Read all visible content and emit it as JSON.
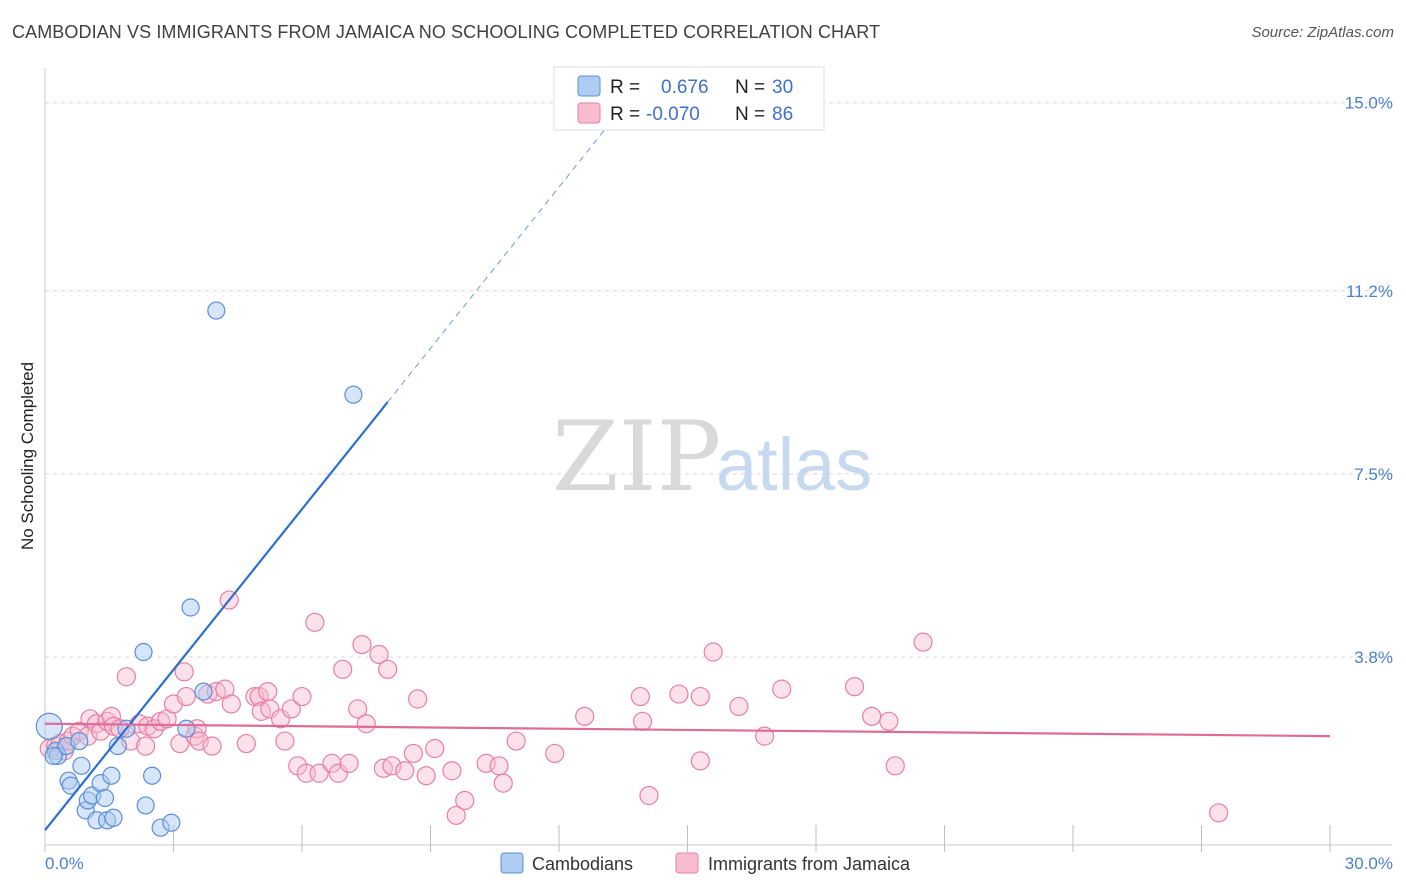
{
  "title": "CAMBODIAN VS IMMIGRANTS FROM JAMAICA NO SCHOOLING COMPLETED CORRELATION CHART",
  "source": "Source: ZipAtlas.com",
  "watermark": {
    "part1": "ZIP",
    "part2": "atlas"
  },
  "colors": {
    "blue_fill": "#aecbf2",
    "blue_stroke": "#5b8fd9",
    "blue_line": "#2a6fd1",
    "pink_fill": "#f7bcd0",
    "pink_stroke": "#e87fa3",
    "pink_line": "#e06b98",
    "grid": "#d8d8d8",
    "tick_label": "#4a7fd4"
  },
  "legend": {
    "r_label": "R =",
    "n_label": "N =",
    "rows": [
      {
        "r": "0.676",
        "n": "30"
      },
      {
        "r": "-0.070",
        "n": "86"
      }
    ]
  },
  "chart_data": {
    "type": "scatter",
    "title": "CAMBODIAN VS IMMIGRANTS FROM JAMAICA NO SCHOOLING COMPLETED CORRELATION CHART",
    "xlabel": "",
    "ylabel": "No Schooling Completed",
    "xlim": [
      0,
      30
    ],
    "ylim": [
      0,
      15.5
    ],
    "x_tick_labels": [
      "0.0%",
      "30.0%"
    ],
    "y_ticks": [
      3.8,
      7.5,
      11.2,
      15.0
    ],
    "y_tick_labels": [
      "3.8%",
      "7.5%",
      "11.2%",
      "15.0%"
    ],
    "grid": true,
    "series": [
      {
        "name": "Cambodians",
        "r": 0.676,
        "n": 30,
        "trend": {
          "x_start": 0.0,
          "y_start": 0.3,
          "x_solid_end": 8.0,
          "y_solid_end": 8.95,
          "x_dash_end": 13.2,
          "y_dash_end": 14.6
        },
        "points": [
          [
            0.1,
            2.4
          ],
          [
            0.25,
            1.9
          ],
          [
            0.3,
            1.8
          ],
          [
            0.5,
            2.0
          ],
          [
            0.55,
            1.3
          ],
          [
            0.6,
            1.2
          ],
          [
            0.8,
            2.1
          ],
          [
            0.85,
            1.6
          ],
          [
            0.95,
            0.7
          ],
          [
            1.0,
            0.9
          ],
          [
            1.1,
            1.0
          ],
          [
            1.2,
            0.5
          ],
          [
            1.3,
            1.25
          ],
          [
            1.45,
            0.5
          ],
          [
            1.55,
            1.4
          ],
          [
            1.6,
            0.55
          ],
          [
            1.7,
            2.0
          ],
          [
            1.9,
            2.35
          ],
          [
            2.3,
            3.9
          ],
          [
            2.35,
            0.8
          ],
          [
            2.5,
            1.4
          ],
          [
            2.7,
            0.35
          ],
          [
            2.95,
            0.45
          ],
          [
            3.3,
            2.35
          ],
          [
            3.4,
            4.8
          ],
          [
            3.7,
            3.1
          ],
          [
            4.0,
            10.8
          ],
          [
            7.2,
            9.1
          ],
          [
            0.2,
            1.8
          ],
          [
            1.4,
            0.95
          ]
        ]
      },
      {
        "name": "Immigrants from Jamaica",
        "r": -0.07,
        "n": 86,
        "trend": {
          "x_start": 0.0,
          "y_start": 2.45,
          "x_end": 30.0,
          "y_end": 2.2
        },
        "points": [
          [
            0.1,
            1.95
          ],
          [
            0.25,
            2.0
          ],
          [
            0.35,
            2.05
          ],
          [
            0.45,
            1.9
          ],
          [
            0.55,
            2.1
          ],
          [
            0.65,
            2.2
          ],
          [
            0.8,
            2.3
          ],
          [
            1.0,
            2.2
          ],
          [
            1.05,
            2.55
          ],
          [
            1.2,
            2.45
          ],
          [
            1.3,
            2.3
          ],
          [
            1.45,
            2.5
          ],
          [
            1.55,
            2.6
          ],
          [
            1.6,
            2.4
          ],
          [
            1.75,
            2.35
          ],
          [
            1.9,
            3.4
          ],
          [
            2.0,
            2.1
          ],
          [
            2.2,
            2.45
          ],
          [
            2.35,
            2.0
          ],
          [
            2.4,
            2.4
          ],
          [
            2.55,
            2.35
          ],
          [
            2.7,
            2.5
          ],
          [
            2.85,
            2.55
          ],
          [
            3.0,
            2.85
          ],
          [
            3.15,
            2.05
          ],
          [
            3.25,
            3.5
          ],
          [
            3.3,
            3.0
          ],
          [
            3.5,
            2.2
          ],
          [
            3.55,
            2.35
          ],
          [
            3.6,
            2.1
          ],
          [
            3.8,
            3.05
          ],
          [
            3.9,
            2.0
          ],
          [
            4.0,
            3.1
          ],
          [
            4.2,
            3.15
          ],
          [
            4.3,
            4.95
          ],
          [
            4.35,
            2.85
          ],
          [
            4.7,
            2.05
          ],
          [
            4.9,
            3.0
          ],
          [
            5.0,
            3.0
          ],
          [
            5.05,
            2.7
          ],
          [
            5.2,
            3.1
          ],
          [
            5.25,
            2.75
          ],
          [
            5.5,
            2.55
          ],
          [
            5.6,
            2.1
          ],
          [
            5.75,
            2.75
          ],
          [
            5.9,
            1.6
          ],
          [
            6.0,
            3.0
          ],
          [
            6.1,
            1.45
          ],
          [
            6.3,
            4.5
          ],
          [
            6.4,
            1.45
          ],
          [
            6.7,
            1.65
          ],
          [
            6.85,
            1.45
          ],
          [
            6.95,
            3.55
          ],
          [
            7.1,
            1.65
          ],
          [
            7.3,
            2.75
          ],
          [
            7.4,
            4.05
          ],
          [
            7.5,
            2.45
          ],
          [
            7.8,
            3.85
          ],
          [
            7.9,
            1.55
          ],
          [
            8.0,
            3.55
          ],
          [
            8.1,
            1.6
          ],
          [
            8.4,
            1.5
          ],
          [
            8.6,
            1.85
          ],
          [
            8.7,
            2.95
          ],
          [
            8.9,
            1.4
          ],
          [
            9.1,
            1.95
          ],
          [
            9.5,
            1.5
          ],
          [
            9.6,
            0.6
          ],
          [
            9.8,
            0.9
          ],
          [
            10.3,
            1.65
          ],
          [
            10.6,
            1.6
          ],
          [
            10.7,
            1.25
          ],
          [
            11.0,
            2.1
          ],
          [
            11.9,
            1.85
          ],
          [
            12.6,
            2.6
          ],
          [
            13.9,
            3.0
          ],
          [
            13.95,
            2.5
          ],
          [
            14.1,
            1.0
          ],
          [
            14.8,
            3.05
          ],
          [
            15.3,
            1.7
          ],
          [
            15.3,
            3.0
          ],
          [
            15.6,
            3.9
          ],
          [
            16.2,
            2.8
          ],
          [
            16.8,
            2.2
          ],
          [
            17.2,
            3.15
          ],
          [
            18.9,
            3.2
          ]
        ],
        "extra_points": [
          [
            19.3,
            2.6
          ],
          [
            19.7,
            2.5
          ],
          [
            19.85,
            1.6
          ],
          [
            20.5,
            4.1
          ],
          [
            27.4,
            0.65
          ]
        ]
      }
    ],
    "legend_entries": [
      "Cambodians",
      "Immigrants from Jamaica"
    ]
  }
}
